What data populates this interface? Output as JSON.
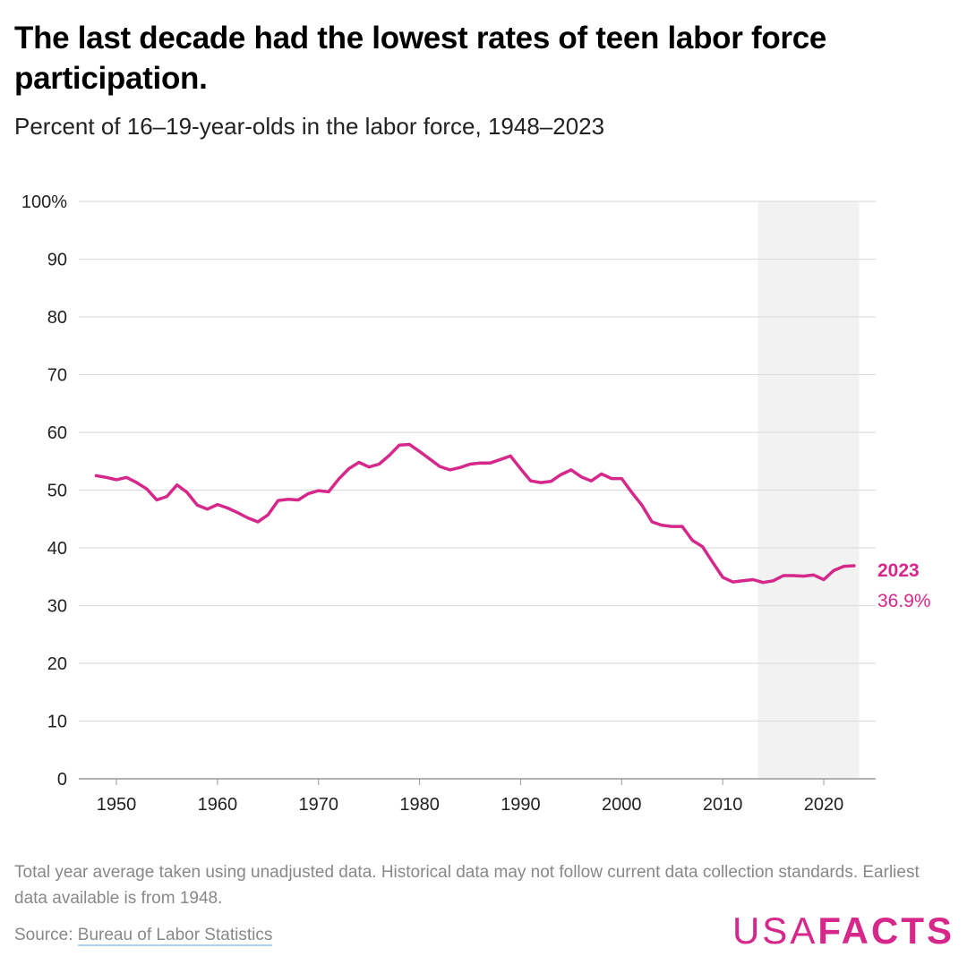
{
  "title": "The last decade had the lowest rates of teen labor force participation.",
  "subtitle": "Percent of 16–19-year-olds in the labor force, 1948–2023",
  "note": "Total year average taken using unadjusted data. Historical data may not follow current data collection standards. Earliest data available is from 1948.",
  "source_prefix": "Source: ",
  "source_link": "Bureau of Labor Statistics",
  "logo": {
    "part1": "USA",
    "part2": "FACTS"
  },
  "colors": {
    "line": "#d6288b",
    "shade": "#f2f2f2",
    "grid": "#dddddd"
  },
  "chart_data": {
    "type": "line",
    "title": "The last decade had the lowest rates of teen labor force participation.",
    "subtitle": "Percent of 16–19-year-olds in the labor force, 1948–2023",
    "xlim": [
      1948,
      2023
    ],
    "ylim": [
      0,
      100
    ],
    "grid": true,
    "x_ticks": [
      1950,
      1960,
      1970,
      1980,
      1990,
      2000,
      2010,
      2020
    ],
    "y_ticks": [
      "0",
      "10",
      "20",
      "30",
      "40",
      "50",
      "60",
      "70",
      "80",
      "90",
      "100%"
    ],
    "y_tick_values": [
      0,
      10,
      20,
      30,
      40,
      50,
      60,
      70,
      80,
      90,
      100
    ],
    "highlight_range": [
      2013.5,
      2023.5
    ],
    "end_label": {
      "year": "2023",
      "value": "36.9%"
    },
    "x": [
      1948,
      1949,
      1950,
      1951,
      1952,
      1953,
      1954,
      1955,
      1956,
      1957,
      1958,
      1959,
      1960,
      1961,
      1962,
      1963,
      1964,
      1965,
      1966,
      1967,
      1968,
      1969,
      1970,
      1971,
      1972,
      1973,
      1974,
      1975,
      1976,
      1977,
      1978,
      1979,
      1980,
      1981,
      1982,
      1983,
      1984,
      1985,
      1986,
      1987,
      1988,
      1989,
      1990,
      1991,
      1992,
      1993,
      1994,
      1995,
      1996,
      1997,
      1998,
      1999,
      2000,
      2001,
      2002,
      2003,
      2004,
      2005,
      2006,
      2007,
      2008,
      2009,
      2010,
      2011,
      2012,
      2013,
      2014,
      2015,
      2016,
      2017,
      2018,
      2019,
      2020,
      2021,
      2022,
      2023
    ],
    "y": [
      52.5,
      52.2,
      51.8,
      52.2,
      51.3,
      50.2,
      48.3,
      48.9,
      50.9,
      49.6,
      47.4,
      46.7,
      47.5,
      46.9,
      46.1,
      45.2,
      44.5,
      45.7,
      48.2,
      48.4,
      48.3,
      49.4,
      49.9,
      49.7,
      51.9,
      53.7,
      54.8,
      54.0,
      54.5,
      56.0,
      57.8,
      57.9,
      56.7,
      55.4,
      54.1,
      53.5,
      53.9,
      54.5,
      54.7,
      54.7,
      55.3,
      55.9,
      53.7,
      51.6,
      51.3,
      51.5,
      52.7,
      53.5,
      52.3,
      51.6,
      52.8,
      52.0,
      52.0,
      49.6,
      47.4,
      44.5,
      43.9,
      43.7,
      43.7,
      41.3,
      40.2,
      37.5,
      34.9,
      34.1,
      34.3,
      34.5,
      34.0,
      34.3,
      35.2,
      35.2,
      35.1,
      35.3,
      34.5,
      36.1,
      36.8,
      36.9
    ]
  }
}
